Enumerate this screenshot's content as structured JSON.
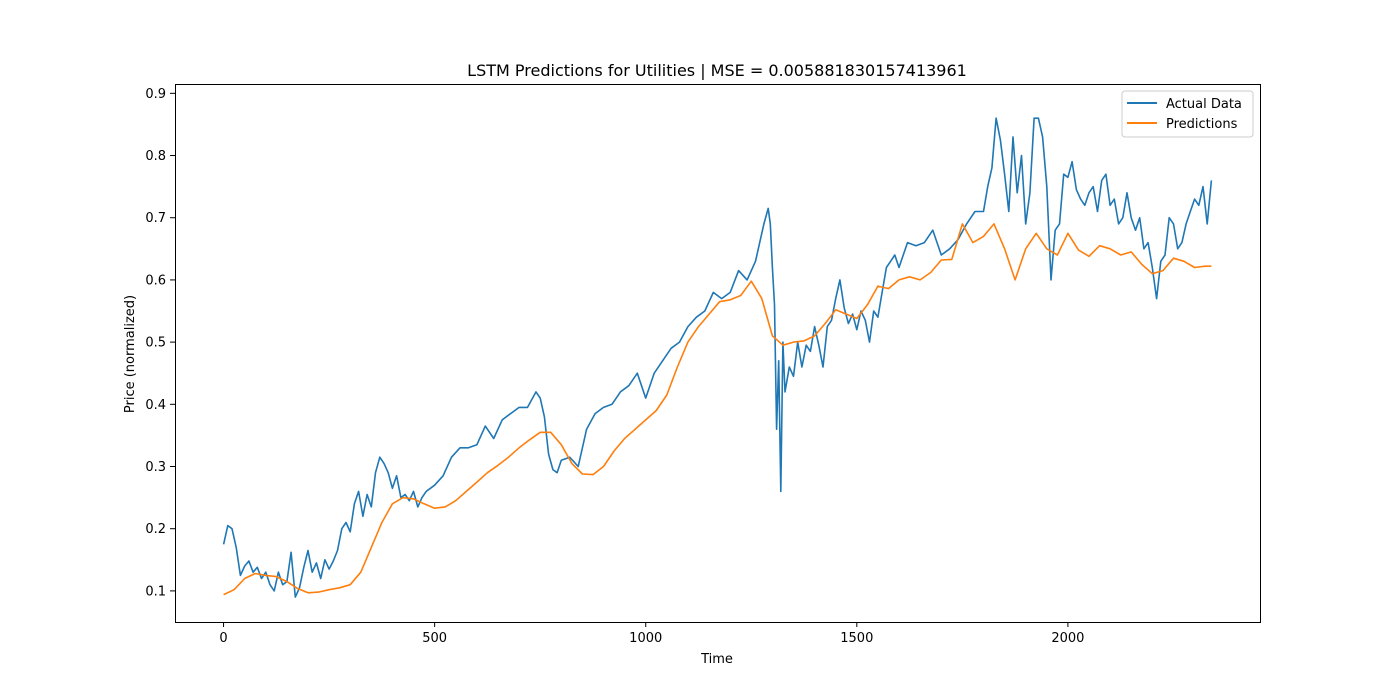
{
  "chart_data": {
    "type": "line",
    "title": "LSTM Predictions for Utilities | MSE = 0.005881830157413961",
    "xlabel": "Time",
    "ylabel": "Price (normalized)",
    "xlim": [
      -115,
      2455
    ],
    "ylim": [
      0.05,
      0.915
    ],
    "xticks": [
      0,
      500,
      1000,
      1500,
      2000
    ],
    "xtick_labels": [
      "0",
      "500",
      "1000",
      "1500",
      "2000"
    ],
    "yticks": [
      0.1,
      0.2,
      0.3,
      0.4,
      0.5,
      0.6,
      0.7,
      0.8,
      0.9
    ],
    "ytick_labels": [
      "0.1",
      "0.2",
      "0.3",
      "0.4",
      "0.5",
      "0.6",
      "0.7",
      "0.8",
      "0.9"
    ],
    "grid": false,
    "legend_position": "top-right",
    "series": [
      {
        "name": "Actual Data",
        "color": "#1f77b4",
        "x": [
          0,
          10,
          20,
          30,
          40,
          50,
          60,
          70,
          80,
          90,
          100,
          110,
          120,
          130,
          140,
          150,
          160,
          170,
          180,
          190,
          200,
          210,
          220,
          230,
          240,
          250,
          260,
          270,
          280,
          290,
          300,
          310,
          320,
          330,
          340,
          350,
          360,
          370,
          380,
          390,
          400,
          410,
          420,
          430,
          440,
          450,
          460,
          470,
          480,
          490,
          500,
          520,
          540,
          560,
          580,
          600,
          620,
          640,
          660,
          680,
          700,
          720,
          740,
          750,
          760,
          770,
          780,
          790,
          800,
          820,
          840,
          860,
          880,
          900,
          920,
          940,
          960,
          980,
          1000,
          1020,
          1040,
          1060,
          1080,
          1100,
          1120,
          1140,
          1160,
          1180,
          1200,
          1220,
          1240,
          1260,
          1270,
          1280,
          1290,
          1295,
          1300,
          1305,
          1310,
          1315,
          1320,
          1325,
          1330,
          1340,
          1350,
          1360,
          1370,
          1380,
          1390,
          1400,
          1410,
          1420,
          1430,
          1440,
          1450,
          1460,
          1470,
          1480,
          1490,
          1500,
          1510,
          1520,
          1530,
          1540,
          1550,
          1560,
          1570,
          1580,
          1590,
          1600,
          1620,
          1640,
          1660,
          1680,
          1700,
          1720,
          1740,
          1760,
          1780,
          1800,
          1810,
          1820,
          1830,
          1840,
          1850,
          1860,
          1870,
          1880,
          1890,
          1900,
          1910,
          1920,
          1930,
          1940,
          1950,
          1960,
          1970,
          1980,
          1990,
          2000,
          2010,
          2020,
          2030,
          2040,
          2050,
          2060,
          2070,
          2080,
          2090,
          2100,
          2110,
          2120,
          2130,
          2140,
          2150,
          2160,
          2170,
          2180,
          2190,
          2200,
          2210,
          2220,
          2230,
          2240,
          2250,
          2260,
          2270,
          2280,
          2290,
          2300,
          2310,
          2320,
          2330,
          2340
        ],
        "y": [
          0.175,
          0.205,
          0.2,
          0.17,
          0.125,
          0.14,
          0.148,
          0.13,
          0.138,
          0.12,
          0.13,
          0.11,
          0.1,
          0.13,
          0.11,
          0.115,
          0.162,
          0.09,
          0.105,
          0.138,
          0.165,
          0.13,
          0.145,
          0.12,
          0.15,
          0.135,
          0.148,
          0.165,
          0.2,
          0.21,
          0.195,
          0.24,
          0.26,
          0.22,
          0.255,
          0.235,
          0.29,
          0.315,
          0.305,
          0.29,
          0.265,
          0.285,
          0.25,
          0.255,
          0.245,
          0.26,
          0.235,
          0.25,
          0.26,
          0.265,
          0.27,
          0.285,
          0.315,
          0.33,
          0.33,
          0.335,
          0.365,
          0.345,
          0.375,
          0.385,
          0.395,
          0.395,
          0.42,
          0.41,
          0.38,
          0.32,
          0.295,
          0.29,
          0.31,
          0.315,
          0.3,
          0.36,
          0.385,
          0.395,
          0.4,
          0.42,
          0.43,
          0.45,
          0.41,
          0.45,
          0.47,
          0.49,
          0.5,
          0.525,
          0.54,
          0.55,
          0.58,
          0.57,
          0.58,
          0.615,
          0.6,
          0.63,
          0.66,
          0.69,
          0.715,
          0.69,
          0.62,
          0.56,
          0.36,
          0.47,
          0.26,
          0.5,
          0.42,
          0.46,
          0.445,
          0.5,
          0.46,
          0.495,
          0.485,
          0.525,
          0.495,
          0.46,
          0.525,
          0.535,
          0.57,
          0.6,
          0.555,
          0.53,
          0.545,
          0.52,
          0.55,
          0.535,
          0.5,
          0.55,
          0.54,
          0.58,
          0.62,
          0.63,
          0.64,
          0.62,
          0.66,
          0.655,
          0.66,
          0.68,
          0.64,
          0.65,
          0.665,
          0.69,
          0.71,
          0.71,
          0.75,
          0.78,
          0.86,
          0.825,
          0.77,
          0.71,
          0.83,
          0.74,
          0.8,
          0.69,
          0.74,
          0.86,
          0.86,
          0.83,
          0.75,
          0.6,
          0.68,
          0.69,
          0.77,
          0.765,
          0.79,
          0.745,
          0.73,
          0.72,
          0.74,
          0.75,
          0.71,
          0.76,
          0.77,
          0.72,
          0.73,
          0.69,
          0.7,
          0.74,
          0.7,
          0.68,
          0.7,
          0.65,
          0.66,
          0.62,
          0.57,
          0.63,
          0.64,
          0.7,
          0.69,
          0.65,
          0.66,
          0.69,
          0.71,
          0.73,
          0.72,
          0.75,
          0.69,
          0.76
        ]
      },
      {
        "name": "Predictions",
        "color": "#ff7f0e",
        "x": [
          0,
          25,
          50,
          75,
          100,
          125,
          150,
          175,
          200,
          225,
          250,
          275,
          300,
          325,
          350,
          375,
          400,
          425,
          450,
          475,
          500,
          525,
          550,
          575,
          600,
          625,
          650,
          675,
          700,
          725,
          750,
          775,
          800,
          825,
          850,
          875,
          900,
          925,
          950,
          975,
          1000,
          1025,
          1050,
          1075,
          1100,
          1125,
          1150,
          1175,
          1200,
          1225,
          1250,
          1275,
          1300,
          1325,
          1350,
          1375,
          1400,
          1425,
          1450,
          1475,
          1500,
          1525,
          1550,
          1575,
          1600,
          1625,
          1650,
          1675,
          1700,
          1725,
          1750,
          1775,
          1800,
          1825,
          1850,
          1875,
          1900,
          1925,
          1950,
          1975,
          2000,
          2025,
          2050,
          2075,
          2100,
          2125,
          2150,
          2175,
          2200,
          2225,
          2250,
          2275,
          2300,
          2325,
          2340
        ],
        "y": [
          0.094,
          0.102,
          0.12,
          0.128,
          0.125,
          0.123,
          0.115,
          0.104,
          0.097,
          0.098,
          0.102,
          0.105,
          0.11,
          0.13,
          0.17,
          0.21,
          0.24,
          0.25,
          0.248,
          0.24,
          0.233,
          0.235,
          0.245,
          0.26,
          0.275,
          0.29,
          0.302,
          0.315,
          0.33,
          0.343,
          0.355,
          0.355,
          0.335,
          0.305,
          0.288,
          0.287,
          0.3,
          0.325,
          0.345,
          0.36,
          0.375,
          0.39,
          0.415,
          0.46,
          0.5,
          0.525,
          0.545,
          0.565,
          0.568,
          0.575,
          0.598,
          0.57,
          0.51,
          0.495,
          0.5,
          0.502,
          0.51,
          0.53,
          0.552,
          0.545,
          0.538,
          0.56,
          0.59,
          0.586,
          0.6,
          0.605,
          0.6,
          0.612,
          0.632,
          0.633,
          0.69,
          0.66,
          0.67,
          0.69,
          0.65,
          0.6,
          0.65,
          0.675,
          0.65,
          0.64,
          0.675,
          0.648,
          0.638,
          0.655,
          0.65,
          0.64,
          0.645,
          0.625,
          0.61,
          0.615,
          0.635,
          0.63,
          0.62,
          0.622,
          0.622
        ]
      }
    ]
  }
}
